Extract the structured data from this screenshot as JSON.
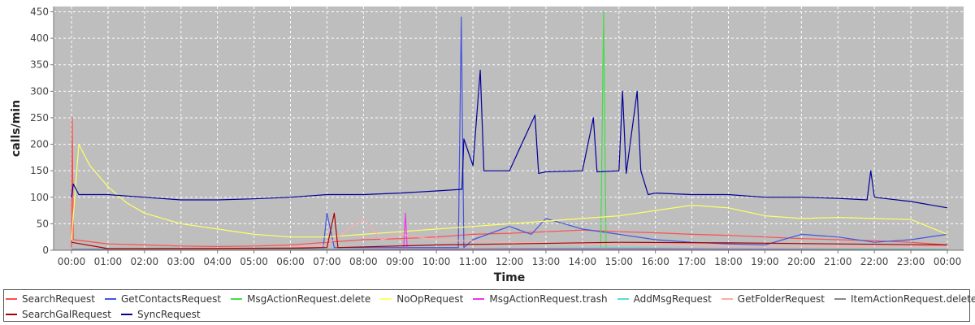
{
  "chart_data": {
    "type": "line",
    "title": "",
    "xlabel": "Time",
    "ylabel": "calls/min",
    "ylim": [
      0,
      460
    ],
    "yticks": [
      0,
      50,
      100,
      150,
      200,
      250,
      300,
      350,
      400,
      450
    ],
    "xticks": [
      "00:00",
      "01:00",
      "02:00",
      "03:00",
      "04:00",
      "05:00",
      "06:00",
      "07:00",
      "08:00",
      "09:00",
      "10:00",
      "11:00",
      "12:00",
      "13:00",
      "14:00",
      "15:00",
      "16:00",
      "17:00",
      "18:00",
      "19:00",
      "20:00",
      "21:00",
      "22:00",
      "23:00",
      "00:00"
    ],
    "grid": true,
    "legend_position": "bottom",
    "plot_background": "#bebebe",
    "series": [
      {
        "name": "SearchRequest",
        "color": "#ff4d4d",
        "points": [
          [
            0,
            5
          ],
          [
            0.02,
            250
          ],
          [
            0.05,
            20
          ],
          [
            1,
            12
          ],
          [
            2,
            10
          ],
          [
            3,
            8
          ],
          [
            4,
            7
          ],
          [
            5,
            8
          ],
          [
            6,
            10
          ],
          [
            7,
            15
          ],
          [
            8,
            20
          ],
          [
            9,
            22
          ],
          [
            10,
            25
          ],
          [
            11,
            30
          ],
          [
            12,
            32
          ],
          [
            13,
            35
          ],
          [
            14,
            38
          ],
          [
            15,
            35
          ],
          [
            16,
            33
          ],
          [
            17,
            30
          ],
          [
            18,
            28
          ],
          [
            19,
            25
          ],
          [
            20,
            22
          ],
          [
            21,
            20
          ],
          [
            22,
            18
          ],
          [
            23,
            15
          ],
          [
            24,
            10
          ]
        ]
      },
      {
        "name": "GetContactsRequest",
        "color": "#4455dd",
        "points": [
          [
            0,
            2
          ],
          [
            6,
            3
          ],
          [
            6.9,
            5
          ],
          [
            7.0,
            70
          ],
          [
            7.2,
            5
          ],
          [
            10.6,
            5
          ],
          [
            10.68,
            440
          ],
          [
            10.75,
            5
          ],
          [
            11,
            20
          ],
          [
            12,
            45
          ],
          [
            12.6,
            30
          ],
          [
            13,
            60
          ],
          [
            14,
            40
          ],
          [
            15,
            30
          ],
          [
            16,
            20
          ],
          [
            17,
            15
          ],
          [
            18,
            12
          ],
          [
            19,
            10
          ],
          [
            20,
            30
          ],
          [
            21,
            25
          ],
          [
            22,
            15
          ],
          [
            23,
            20
          ],
          [
            24,
            30
          ]
        ]
      },
      {
        "name": "MsgActionRequest.delete",
        "color": "#44dd44",
        "points": [
          [
            0,
            1
          ],
          [
            14.5,
            2
          ],
          [
            14.58,
            450
          ],
          [
            14.65,
            2
          ],
          [
            24,
            1
          ]
        ]
      },
      {
        "name": "NoOpRequest",
        "color": "#ffff66",
        "points": [
          [
            0,
            20
          ],
          [
            0.2,
            200
          ],
          [
            0.5,
            160
          ],
          [
            1,
            120
          ],
          [
            1.5,
            90
          ],
          [
            2,
            70
          ],
          [
            3,
            50
          ],
          [
            4,
            40
          ],
          [
            5,
            30
          ],
          [
            6,
            25
          ],
          [
            7,
            25
          ],
          [
            8,
            30
          ],
          [
            9,
            35
          ],
          [
            10,
            40
          ],
          [
            11,
            45
          ],
          [
            12,
            50
          ],
          [
            13,
            55
          ],
          [
            14,
            60
          ],
          [
            15,
            65
          ],
          [
            16,
            75
          ],
          [
            17,
            85
          ],
          [
            18,
            80
          ],
          [
            19,
            65
          ],
          [
            20,
            60
          ],
          [
            21,
            62
          ],
          [
            22,
            60
          ],
          [
            23,
            58
          ],
          [
            24,
            30
          ]
        ]
      },
      {
        "name": "MsgActionRequest.trash",
        "color": "#ee33ee",
        "points": [
          [
            0,
            1
          ],
          [
            9.1,
            1
          ],
          [
            9.15,
            70
          ],
          [
            9.2,
            1
          ],
          [
            24,
            1
          ]
        ]
      },
      {
        "name": "AddMsgRequest",
        "color": "#55dddd",
        "points": [
          [
            0,
            1
          ],
          [
            12,
            3
          ],
          [
            15,
            5
          ],
          [
            18,
            3
          ],
          [
            24,
            2
          ]
        ]
      },
      {
        "name": "GetFolderRequest",
        "color": "#ffaaaa",
        "points": [
          [
            0,
            1
          ],
          [
            4,
            2
          ],
          [
            6,
            5
          ],
          [
            7,
            10
          ],
          [
            8,
            60
          ],
          [
            8.5,
            20
          ],
          [
            9,
            30
          ],
          [
            10,
            20
          ],
          [
            12,
            15
          ],
          [
            15,
            10
          ],
          [
            18,
            8
          ],
          [
            24,
            5
          ]
        ]
      },
      {
        "name": "ItemActionRequest.delete",
        "color": "#888888",
        "points": [
          [
            0,
            1
          ],
          [
            8,
            2
          ],
          [
            12,
            3
          ],
          [
            16,
            3
          ],
          [
            20,
            2
          ],
          [
            24,
            1
          ]
        ]
      },
      {
        "name": "SearchGalRequest",
        "color": "#aa0000",
        "points": [
          [
            0,
            15
          ],
          [
            1,
            3
          ],
          [
            6,
            4
          ],
          [
            7,
            5
          ],
          [
            7.2,
            70
          ],
          [
            7.3,
            5
          ],
          [
            10,
            10
          ],
          [
            12,
            12
          ],
          [
            15,
            15
          ],
          [
            18,
            14
          ],
          [
            21,
            12
          ],
          [
            24,
            10
          ]
        ]
      },
      {
        "name": "SyncRequest",
        "color": "#000099",
        "points": [
          [
            0,
            100
          ],
          [
            0.05,
            125
          ],
          [
            0.2,
            105
          ],
          [
            1,
            105
          ],
          [
            2,
            100
          ],
          [
            3,
            95
          ],
          [
            4,
            95
          ],
          [
            5,
            97
          ],
          [
            6,
            100
          ],
          [
            7,
            105
          ],
          [
            8,
            105
          ],
          [
            9,
            108
          ],
          [
            10,
            112
          ],
          [
            10.7,
            115
          ],
          [
            10.75,
            210
          ],
          [
            11,
            160
          ],
          [
            11.2,
            340
          ],
          [
            11.3,
            150
          ],
          [
            12,
            150
          ],
          [
            12.7,
            255
          ],
          [
            12.8,
            145
          ],
          [
            13,
            148
          ],
          [
            14,
            150
          ],
          [
            14.3,
            250
          ],
          [
            14.4,
            148
          ],
          [
            15,
            150
          ],
          [
            15.1,
            300
          ],
          [
            15.2,
            145
          ],
          [
            15.5,
            300
          ],
          [
            15.6,
            150
          ],
          [
            15.8,
            105
          ],
          [
            16,
            108
          ],
          [
            17,
            105
          ],
          [
            18,
            105
          ],
          [
            19,
            100
          ],
          [
            20,
            100
          ],
          [
            21,
            98
          ],
          [
            21.8,
            95
          ],
          [
            21.9,
            150
          ],
          [
            22,
            100
          ],
          [
            23,
            92
          ],
          [
            24,
            80
          ]
        ]
      }
    ]
  }
}
